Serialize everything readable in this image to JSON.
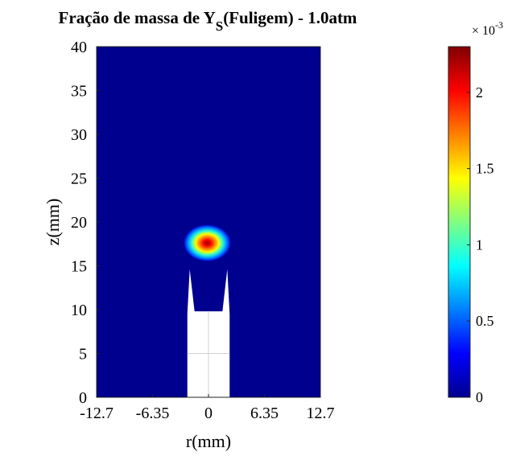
{
  "chart_data": {
    "type": "heatmap",
    "title": {
      "main": "Fração de massa de Y",
      "subscript": "S",
      "rest": "(Fuligem) - 1.0atm"
    },
    "xlabel": "r(mm)",
    "ylabel": "z(mm)",
    "xlim": [
      -12.7,
      12.7
    ],
    "ylim": [
      0,
      40
    ],
    "xticks": [
      -12.7,
      -6.35,
      0,
      6.35,
      12.7
    ],
    "xtick_labels": [
      "-12.7",
      "-6.35",
      "0",
      "6.35",
      "12.7"
    ],
    "yticks": [
      0,
      5,
      10,
      15,
      20,
      25,
      30,
      35,
      40
    ],
    "ytick_labels": [
      "0",
      "5",
      "10",
      "15",
      "20",
      "25",
      "30",
      "35",
      "40"
    ],
    "grid": false,
    "colormap": "jet",
    "background_color": "#00008f",
    "colorbar": {
      "exponent_label": "× 10",
      "exponent": "-3",
      "clim": [
        0,
        2.3
      ],
      "ticks": [
        0,
        0.5,
        1,
        1.5,
        2
      ],
      "tick_labels": [
        "0",
        "0.5",
        "1",
        "1.5",
        "2"
      ]
    },
    "soot_region": {
      "center_r_mm": -0.15,
      "center_z_mm": 17.6,
      "peak_value_e3": 2.3,
      "half_width_r_mm": 2.2,
      "half_height_z_mm": 1.8
    },
    "burner": {
      "color": "#ffffff",
      "outer_r_mm": 2.4,
      "block_top_z_mm": 9.8,
      "tip_z_mm": 14.6,
      "tip_inner_r_mm": 1.4
    }
  }
}
